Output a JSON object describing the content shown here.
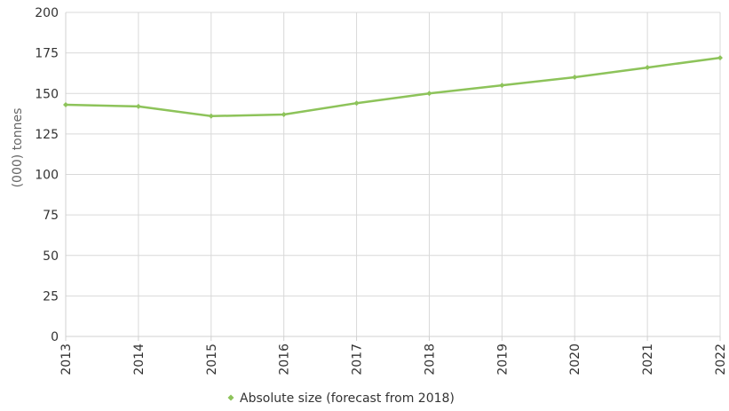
{
  "chart_data": {
    "type": "line",
    "title": "",
    "xlabel": "",
    "ylabel": "(000) tonnes",
    "categories": [
      "2013",
      "2014",
      "2015",
      "2016",
      "2017",
      "2018",
      "2019",
      "2020",
      "2021",
      "2022"
    ],
    "series": [
      {
        "name": "Absolute size (forecast from 2018)",
        "values": [
          143,
          142,
          136,
          137,
          144,
          150,
          155,
          160,
          166,
          172
        ],
        "color": "#8dc35a"
      }
    ],
    "ylim": [
      0,
      200
    ],
    "yticks": [
      0,
      25,
      50,
      75,
      100,
      125,
      150,
      175,
      200
    ],
    "grid": true,
    "legend_position": "bottom-center",
    "x_tick_rotation": "vertical"
  }
}
